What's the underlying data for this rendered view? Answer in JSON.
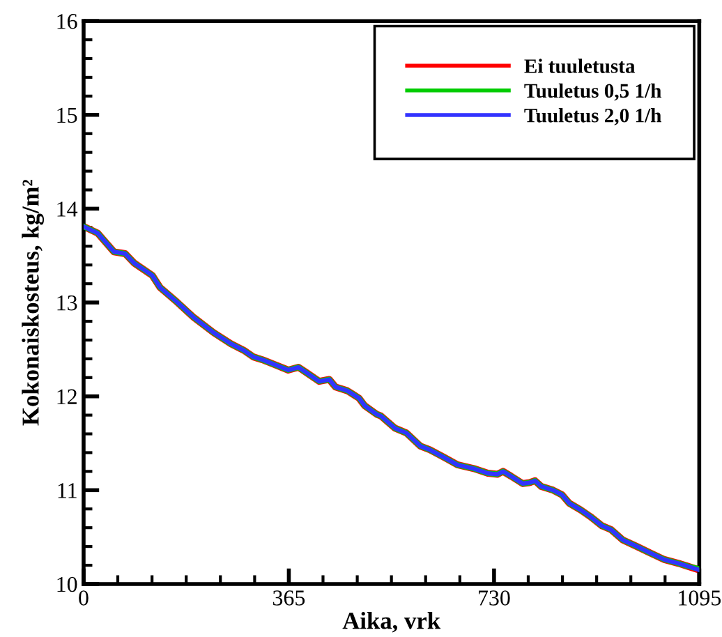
{
  "chart_data": {
    "type": "line",
    "xlabel": "Aika, vrk",
    "ylabel": "Kokonaiskosteus, kg/m²",
    "x": [
      0,
      25,
      54,
      74,
      90,
      122,
      136,
      167,
      196,
      231,
      262,
      285,
      302,
      318,
      339,
      364,
      382,
      397,
      419,
      437,
      448,
      469,
      490,
      500,
      521,
      529,
      554,
      574,
      599,
      616,
      641,
      665,
      694,
      719,
      736,
      746,
      760,
      781,
      793,
      803,
      814,
      835,
      851,
      864,
      884,
      901,
      922,
      938,
      959,
      984,
      1008,
      1033,
      1058,
      1074,
      1095
    ],
    "series": [
      {
        "name": "Ei tuuletusta",
        "color": "#ff0000",
        "values": [
          13.81,
          13.74,
          13.54,
          13.52,
          13.42,
          13.29,
          13.16,
          13.0,
          12.84,
          12.68,
          12.56,
          12.49,
          12.42,
          12.39,
          12.34,
          12.28,
          12.31,
          12.25,
          12.16,
          12.18,
          12.1,
          12.06,
          11.98,
          11.9,
          11.81,
          11.79,
          11.66,
          11.61,
          11.47,
          11.43,
          11.35,
          11.27,
          11.23,
          11.18,
          11.17,
          11.2,
          11.15,
          11.07,
          11.08,
          11.1,
          11.04,
          11.0,
          10.95,
          10.86,
          10.79,
          10.72,
          10.62,
          10.58,
          10.47,
          10.4,
          10.33,
          10.26,
          10.22,
          10.19,
          10.15
        ]
      },
      {
        "name": "Tuuletus 0,5 1/h",
        "color": "#00cc00",
        "values": [
          13.81,
          13.74,
          13.54,
          13.52,
          13.42,
          13.29,
          13.16,
          13.0,
          12.84,
          12.68,
          12.56,
          12.49,
          12.42,
          12.39,
          12.34,
          12.28,
          12.31,
          12.25,
          12.16,
          12.18,
          12.1,
          12.06,
          11.98,
          11.9,
          11.81,
          11.79,
          11.66,
          11.61,
          11.47,
          11.43,
          11.35,
          11.27,
          11.23,
          11.18,
          11.17,
          11.2,
          11.15,
          11.07,
          11.08,
          11.1,
          11.04,
          11.0,
          10.95,
          10.86,
          10.79,
          10.72,
          10.62,
          10.58,
          10.47,
          10.4,
          10.33,
          10.26,
          10.22,
          10.19,
          10.16
        ]
      },
      {
        "name": "Tuuletus 2,0 1/h",
        "color": "#3333ff",
        "values": [
          13.81,
          13.74,
          13.54,
          13.52,
          13.42,
          13.29,
          13.16,
          13.0,
          12.84,
          12.68,
          12.56,
          12.49,
          12.42,
          12.39,
          12.34,
          12.28,
          12.31,
          12.25,
          12.16,
          12.18,
          12.1,
          12.06,
          11.98,
          11.9,
          11.81,
          11.79,
          11.66,
          11.61,
          11.47,
          11.43,
          11.35,
          11.27,
          11.23,
          11.18,
          11.17,
          11.2,
          11.15,
          11.07,
          11.08,
          11.1,
          11.04,
          11.0,
          10.95,
          10.86,
          10.79,
          10.72,
          10.62,
          10.58,
          10.47,
          10.4,
          10.33,
          10.26,
          10.22,
          10.19,
          10.15
        ]
      }
    ],
    "xlim": [
      0,
      1095
    ],
    "xticks": [
      0,
      {
        "value": 60.8,
        "label": null
      },
      {
        "value": 121.7,
        "label": null
      },
      {
        "value": 182.5,
        "label": null
      },
      {
        "value": 243.3,
        "label": null
      },
      {
        "value": 304.2,
        "label": null
      },
      365,
      {
        "value": 425.8,
        "label": null
      },
      {
        "value": 486.7,
        "label": null
      },
      {
        "value": 547.5,
        "label": null
      },
      {
        "value": 608.3,
        "label": null
      },
      {
        "value": 669.2,
        "label": null
      },
      730,
      {
        "value": 790.8,
        "label": null
      },
      {
        "value": 851.7,
        "label": null
      },
      {
        "value": 912.5,
        "label": null
      },
      {
        "value": 973.3,
        "label": null
      },
      {
        "value": 1034.2,
        "label": null
      },
      1095
    ],
    "ylim": [
      10,
      16
    ],
    "yticks": [
      10,
      {
        "value": 10.2,
        "label": null
      },
      {
        "value": 10.4,
        "label": null
      },
      {
        "value": 10.6,
        "label": null
      },
      {
        "value": 10.8,
        "label": null
      },
      11,
      {
        "value": 11.2,
        "label": null
      },
      {
        "value": 11.4,
        "label": null
      },
      {
        "value": 11.6,
        "label": null
      },
      {
        "value": 11.8,
        "label": null
      },
      12,
      {
        "value": 12.2,
        "label": null
      },
      {
        "value": 12.4,
        "label": null
      },
      {
        "value": 12.6,
        "label": null
      },
      {
        "value": 12.8,
        "label": null
      },
      13,
      {
        "value": 13.2,
        "label": null
      },
      {
        "value": 13.4,
        "label": null
      },
      {
        "value": 13.6,
        "label": null
      },
      {
        "value": 13.8,
        "label": null
      },
      14,
      {
        "value": 14.2,
        "label": null
      },
      {
        "value": 14.4,
        "label": null
      },
      {
        "value": 14.6,
        "label": null
      },
      {
        "value": 14.8,
        "label": null
      },
      15,
      {
        "value": 15.2,
        "label": null
      },
      {
        "value": 15.4,
        "label": null
      },
      {
        "value": 15.6,
        "label": null
      },
      {
        "value": 15.8,
        "label": null
      },
      16
    ],
    "legend": "top right",
    "line_style": "solid"
  }
}
